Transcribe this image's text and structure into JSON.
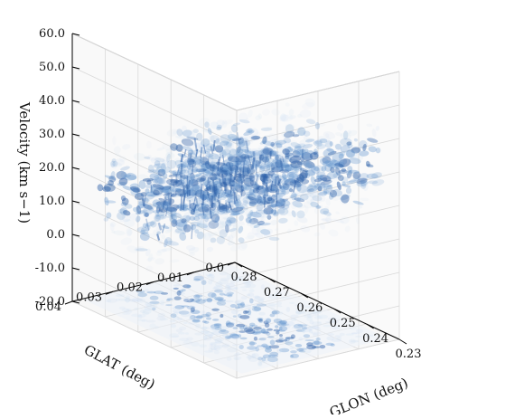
{
  "chart_data": {
    "type": "scatter",
    "projection": "3d",
    "title": "",
    "xlabel": "GLON (deg)",
    "ylabel": "GLAT (deg)",
    "zlabel": "Velocity (km s$^{-1}$)",
    "zlabel_display": "Velocity (km s−1)",
    "xlim": [
      0.28,
      0.23
    ],
    "ylim": [
      0.0,
      0.04
    ],
    "zlim": [
      -20.0,
      60.0
    ],
    "x_ticks": [
      "0.28",
      "0.27",
      "0.26",
      "0.25",
      "0.24",
      "0.23"
    ],
    "y_ticks": [
      "0.0",
      "0.01",
      "0.02",
      "0.03",
      "0.04"
    ],
    "z_ticks": [
      "-20.0",
      "-10.0",
      "0.0",
      "10.0",
      "20.0",
      "30.0",
      "40.0",
      "50.0",
      "60.0"
    ],
    "grid": true,
    "colormap": "Blues",
    "colors": {
      "dark": "#2c5fa8",
      "mid": "#6b9bd1",
      "light": "#cfe0f3",
      "pane": "#f2f2f2",
      "floor": "#edf3fa"
    },
    "structures": [
      {
        "name": "cloud",
        "x_range": [
          0.275,
          0.232
        ],
        "y_range": [
          0.0,
          0.04
        ],
        "v_range": [
          -5.0,
          45.0
        ],
        "peak_velocity": 42.0
      },
      {
        "name": "projection",
        "x_range": [
          0.28,
          0.23
        ],
        "y_range": [
          0.0,
          0.04
        ],
        "v": -20.0
      }
    ]
  }
}
